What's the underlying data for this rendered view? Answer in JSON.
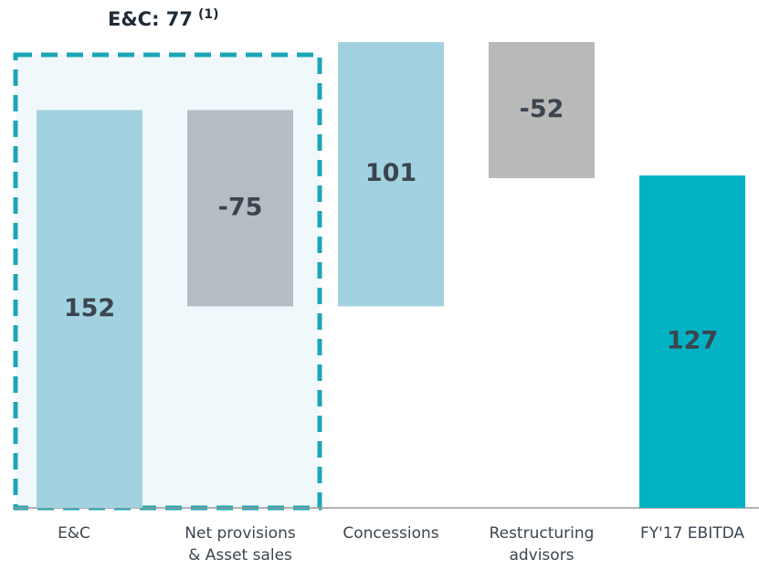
{
  "chart_data": {
    "type": "waterfall",
    "categories": [
      [
        "E&C"
      ],
      [
        "Net provisions",
        "& Asset sales"
      ],
      [
        "Concessions"
      ],
      [
        "Restructuring",
        "advisors"
      ],
      [
        "FY'17 EBITDA"
      ]
    ],
    "values": [
      152,
      -75,
      101,
      -52,
      127
    ],
    "is_total": [
      false,
      false,
      false,
      false,
      true
    ],
    "colors": [
      "#a2d2e0",
      "#b6bcc3",
      "#a2d2e0",
      "#b9b9b9",
      "#00b2c4"
    ],
    "annotation": {
      "text": "E&C: 77",
      "note": "(1)",
      "color": "#1ba6b4"
    }
  }
}
